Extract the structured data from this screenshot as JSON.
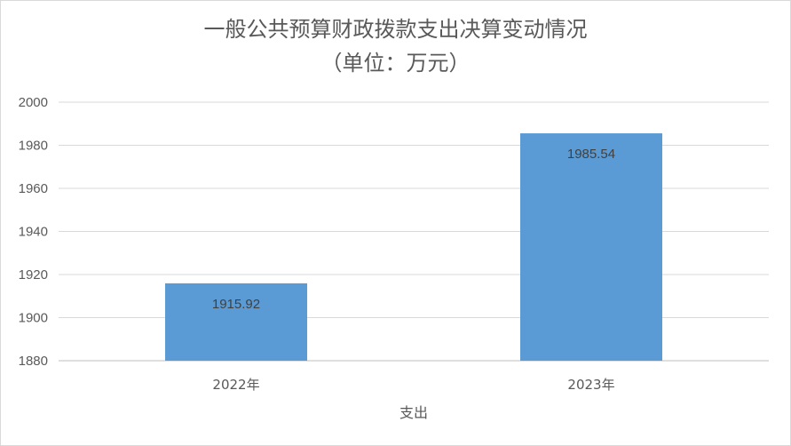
{
  "chart_data": {
    "type": "bar",
    "title": "一般公共预算财政拨款支出决算变动情况",
    "subtitle": "（单位：万元）",
    "categories": [
      "2022年",
      "2023年"
    ],
    "series": [
      {
        "values": [
          1915.92,
          1985.54
        ],
        "data_labels": [
          "1915.92",
          "1985.54"
        ]
      }
    ],
    "xlabel": "支出",
    "ylabel": "",
    "ylim": [
      1880,
      2000
    ],
    "yticks": [
      1880,
      1900,
      1920,
      1940,
      1960,
      1980,
      2000
    ],
    "grid": true,
    "legend": "none",
    "colors": {
      "bar": "#5b9bd5",
      "grid": "#d9d9d9",
      "text": "#595959"
    }
  }
}
